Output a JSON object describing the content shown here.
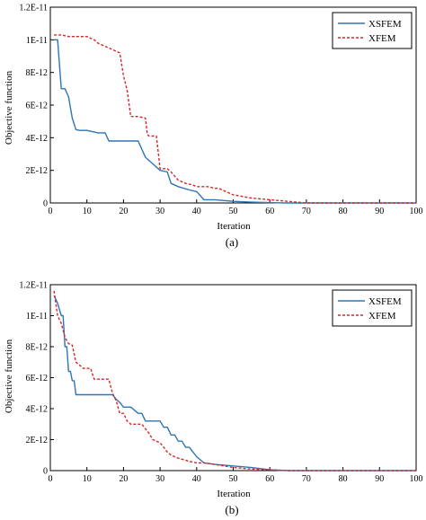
{
  "chart_data": [
    {
      "type": "line",
      "caption": "(a)",
      "xlabel": "Iteration",
      "ylabel": "Objective function",
      "xlim": [
        0,
        100
      ],
      "ylim": [
        0,
        1.2e-11
      ],
      "xticks": [
        0,
        10,
        20,
        30,
        40,
        50,
        60,
        70,
        80,
        90,
        100
      ],
      "xtick_labels": [
        "0",
        "10",
        "20",
        "30",
        "40",
        "50",
        "60",
        "70",
        "80",
        "90",
        "100"
      ],
      "yticks": [
        0,
        2e-12,
        4e-12,
        6e-12,
        8e-12,
        1e-11,
        1.2e-11
      ],
      "ytick_labels": [
        "0",
        "2E-12",
        "4E-12",
        "6E-12",
        "8E-12",
        "1E-11",
        "1.2E-11"
      ],
      "grid": false,
      "legend_position": "top-right",
      "series": [
        {
          "name": "XSFEM",
          "color": "#2e75b6",
          "dash": "solid",
          "x": [
            1,
            2,
            3,
            4,
            5,
            6,
            7,
            8,
            10,
            13,
            15,
            16,
            20,
            22,
            24,
            25,
            26,
            28,
            30,
            32,
            33,
            35,
            38,
            40,
            42,
            45,
            50,
            55,
            60,
            62,
            65,
            70,
            100
          ],
          "y": [
            1e-11,
            1e-11,
            7e-12,
            7e-12,
            6.5e-12,
            5.2e-12,
            4.5e-12,
            4.45e-12,
            4.45e-12,
            4.3e-12,
            4.3e-12,
            3.8e-12,
            3.8e-12,
            3.8e-12,
            3.8e-12,
            3.3e-12,
            2.8e-12,
            2.4e-12,
            2e-12,
            1.9e-12,
            1.2e-12,
            1e-12,
            8e-13,
            7e-13,
            2e-13,
            2e-13,
            1e-13,
            5e-14,
            2e-14,
            1e-14,
            0,
            0,
            0
          ]
        },
        {
          "name": "XFEM",
          "color": "#d62728",
          "dash": "dashed",
          "x": [
            1,
            3,
            5,
            10,
            12,
            13,
            15,
            17,
            19,
            20,
            21,
            22,
            23,
            24,
            26,
            26.5,
            27,
            29,
            29.5,
            30,
            32,
            33,
            35,
            37,
            39,
            40,
            43,
            45,
            46,
            48,
            50,
            55,
            60,
            65,
            70,
            100
          ],
          "y": [
            1.03e-11,
            1.03e-11,
            1.02e-11,
            1.02e-11,
            1e-11,
            9.8e-12,
            9.6e-12,
            9.4e-12,
            9.2e-12,
            7.8e-12,
            6.9e-12,
            5.3e-12,
            5.3e-12,
            5.3e-12,
            5.2e-12,
            4.2e-12,
            4.1e-12,
            4.1e-12,
            3.1e-12,
            2.1e-12,
            2.1e-12,
            1.9e-12,
            1.4e-12,
            1.2e-12,
            1.1e-12,
            1e-12,
            1e-12,
            9e-13,
            9e-13,
            7e-13,
            5e-13,
            3e-13,
            2e-13,
            1e-13,
            0,
            0
          ]
        }
      ]
    },
    {
      "type": "line",
      "caption": "(b)",
      "xlabel": "Iteration",
      "ylabel": "Objective function",
      "xlim": [
        0,
        100
      ],
      "ylim": [
        0,
        1.2e-11
      ],
      "xticks": [
        0,
        10,
        20,
        30,
        40,
        50,
        60,
        70,
        80,
        90,
        100
      ],
      "xtick_labels": [
        "0",
        "10",
        "20",
        "30",
        "40",
        "50",
        "60",
        "70",
        "80",
        "90",
        "100"
      ],
      "yticks": [
        0,
        2e-12,
        4e-12,
        6e-12,
        8e-12,
        1e-11,
        1.2e-11
      ],
      "ytick_labels": [
        "0",
        "2E-12",
        "4E-12",
        "6E-12",
        "8E-12",
        "1E-11",
        "1.2E-11"
      ],
      "grid": false,
      "legend_position": "top-right",
      "series": [
        {
          "name": "XSFEM",
          "color": "#2e75b6",
          "dash": "solid",
          "x": [
            1,
            2,
            3,
            3.5,
            4,
            4.5,
            5,
            5.5,
            6,
            6.5,
            7,
            10,
            15,
            17,
            18,
            19,
            20,
            22,
            24,
            25,
            26,
            30,
            31,
            32,
            33,
            34,
            35,
            36,
            37,
            38,
            39,
            40,
            42,
            45,
            50,
            55,
            60,
            65,
            70,
            100
          ],
          "y": [
            1.13e-11,
            1.08e-11,
            1e-11,
            1e-11,
            8e-12,
            8e-12,
            6.4e-12,
            6.4e-12,
            5.8e-12,
            5.8e-12,
            4.9e-12,
            4.9e-12,
            4.9e-12,
            4.9e-12,
            4.6e-12,
            4.4e-12,
            4.1e-12,
            4.1e-12,
            3.7e-12,
            3.7e-12,
            3.2e-12,
            3.2e-12,
            2.8e-12,
            2.8e-12,
            2.3e-12,
            2.3e-12,
            1.9e-12,
            1.9e-12,
            1.5e-12,
            1.5e-12,
            1.2e-12,
            9e-13,
            5e-13,
            4e-13,
            3e-13,
            2e-13,
            5e-14,
            0,
            0,
            0
          ]
        },
        {
          "name": "XFEM",
          "color": "#d62728",
          "dash": "dashed",
          "x": [
            1,
            2,
            3,
            4,
            5,
            6,
            7,
            8,
            9,
            11,
            12,
            13,
            14,
            15,
            16,
            17,
            18,
            19,
            20,
            21,
            22,
            23,
            24,
            25,
            26,
            27,
            28,
            30,
            31,
            32,
            33,
            35,
            38,
            40,
            42,
            45,
            50,
            55,
            60,
            65,
            70,
            100
          ],
          "y": [
            1.16e-11,
            1e-11,
            9.5e-12,
            8.6e-12,
            8.2e-12,
            8.1e-12,
            7e-12,
            6.8e-12,
            6.6e-12,
            6.6e-12,
            5.9e-12,
            5.9e-12,
            5.9e-12,
            5.9e-12,
            5.9e-12,
            5e-12,
            4.5e-12,
            3.7e-12,
            3.7e-12,
            3.2e-12,
            3e-12,
            3e-12,
            3e-12,
            3e-12,
            2.7e-12,
            2.4e-12,
            2e-12,
            1.8e-12,
            1.5e-12,
            1.2e-12,
            1e-12,
            8e-13,
            6e-13,
            5e-13,
            5e-13,
            4e-13,
            2e-13,
            1e-13,
            5e-14,
            0,
            0,
            0
          ]
        }
      ]
    }
  ]
}
